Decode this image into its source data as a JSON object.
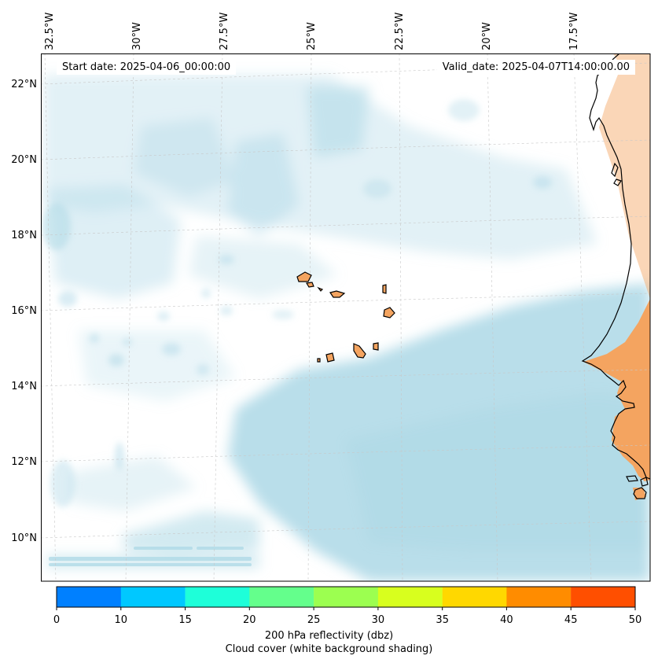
{
  "header": {
    "start_date": "Start date: 2025-04-06_00:00:00",
    "valid_date": "Valid_date: 2025-04-07T14:00:00.00"
  },
  "axes": {
    "lon_labels": [
      "32.5°W",
      "30°W",
      "27.5°W",
      "25°W",
      "22.5°W",
      "20°W",
      "17.5°W"
    ],
    "lat_labels": [
      "22°N",
      "20°N",
      "18°N",
      "16°N",
      "14°N",
      "12°N",
      "10°N"
    ]
  },
  "colorbar": {
    "tick_labels": [
      "0",
      "10",
      "15",
      "20",
      "25",
      "30",
      "35",
      "40",
      "45",
      "50"
    ],
    "colors": [
      "#0080ff",
      "#00c8ff",
      "#1effd9",
      "#64ff8c",
      "#9cff50",
      "#d8ff1e",
      "#ffd800",
      "#ff8c00",
      "#ff4f00"
    ],
    "label_line1": "200 hPa reflectivity (dbz)",
    "label_line2": "Cloud cover (white background shading)"
  },
  "colors": {
    "cloud": "#add8e6",
    "land": "#f4a460",
    "coastline": "#000000"
  }
}
